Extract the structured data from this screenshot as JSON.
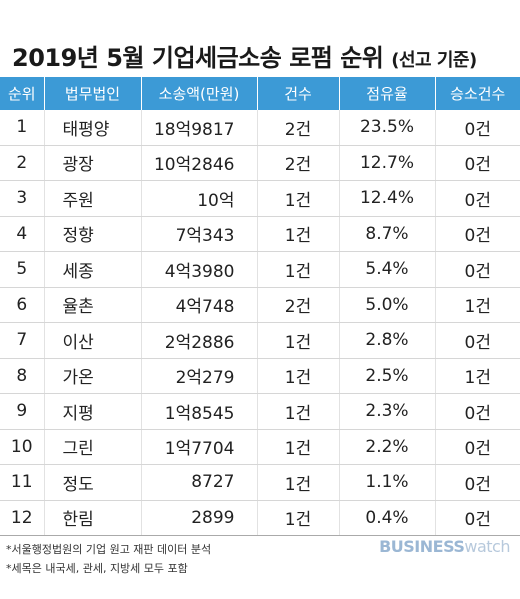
{
  "title": {
    "main": "2019년 5월 기업세금소송 로펌 순위",
    "sub": "(선고 기준)"
  },
  "table": {
    "headers": [
      "순위",
      "법무법인",
      "소송액(만원)",
      "건수",
      "점유율",
      "승소건수"
    ],
    "rows": [
      {
        "rank": "1",
        "firm": "태평양",
        "amount": "18억9817",
        "count": "2건",
        "share": "23.5%",
        "wins": "0건"
      },
      {
        "rank": "2",
        "firm": "광장",
        "amount": "10억2846",
        "count": "2건",
        "share": "12.7%",
        "wins": "0건"
      },
      {
        "rank": "3",
        "firm": "주원",
        "amount": "10억",
        "count": "1건",
        "share": "12.4%",
        "wins": "0건"
      },
      {
        "rank": "4",
        "firm": "정향",
        "amount": "7억343",
        "count": "1건",
        "share": "8.7%",
        "wins": "0건"
      },
      {
        "rank": "5",
        "firm": "세종",
        "amount": "4억3980",
        "count": "1건",
        "share": "5.4%",
        "wins": "0건"
      },
      {
        "rank": "6",
        "firm": "율촌",
        "amount": "4억748",
        "count": "2건",
        "share": "5.0%",
        "wins": "1건"
      },
      {
        "rank": "7",
        "firm": "이산",
        "amount": "2억2886",
        "count": "1건",
        "share": "2.8%",
        "wins": "0건"
      },
      {
        "rank": "8",
        "firm": "가온",
        "amount": "2억279",
        "count": "1건",
        "share": "2.5%",
        "wins": "1건"
      },
      {
        "rank": "9",
        "firm": "지평",
        "amount": "1억8545",
        "count": "1건",
        "share": "2.3%",
        "wins": "0건"
      },
      {
        "rank": "10",
        "firm": "그린",
        "amount": "1억7704",
        "count": "1건",
        "share": "2.2%",
        "wins": "0건"
      },
      {
        "rank": "11",
        "firm": "정도",
        "amount": "8727",
        "count": "1건",
        "share": "1.1%",
        "wins": "0건"
      },
      {
        "rank": "12",
        "firm": "한림",
        "amount": "2899",
        "count": "1건",
        "share": "0.4%",
        "wins": "0건"
      }
    ]
  },
  "footnotes": [
    "*서울행정법원의 기업 원고 재판 데이터 분석",
    "*세목은 내국세, 관세, 지방세 모두 포함"
  ],
  "logo": {
    "bold": "BUSINESS",
    "light": "watch"
  },
  "colors": {
    "header_bg": "#3c9ad6",
    "logo": "#9bb7d4"
  }
}
